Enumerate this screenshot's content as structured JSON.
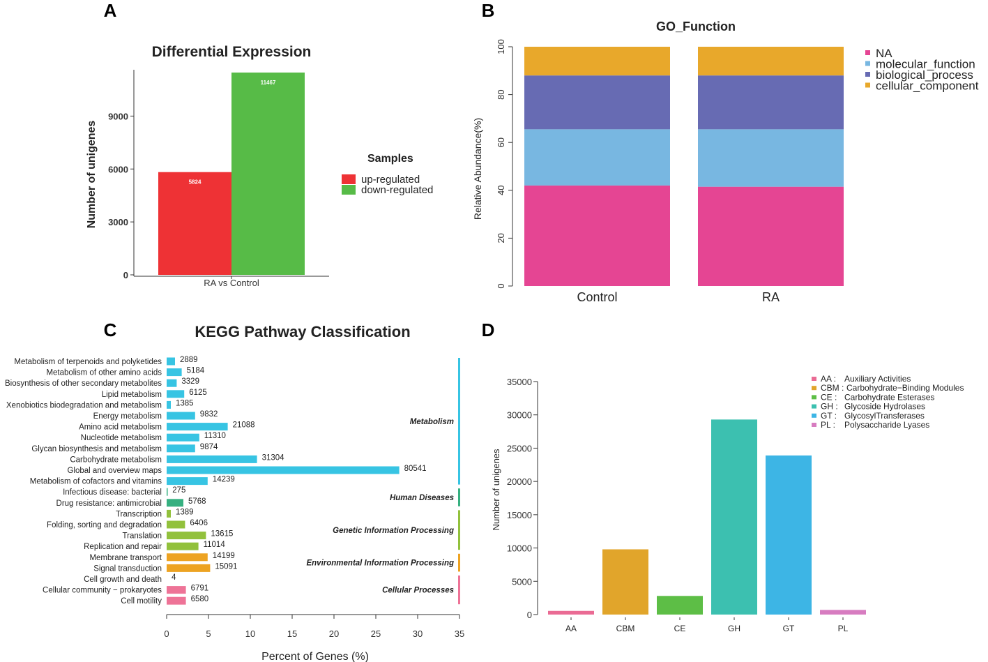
{
  "panels": {
    "a": {
      "letter": "A"
    },
    "b": {
      "letter": "B"
    },
    "c": {
      "letter": "C"
    },
    "d": {
      "letter": "D"
    }
  },
  "chart_data": [
    {
      "id": "A",
      "type": "bar",
      "title": "Differential Expression",
      "xlabel": "",
      "ylabel": "Number of unigenes",
      "categories": [
        "RA  vs Control"
      ],
      "series": [
        {
          "name": "up-regulated",
          "color": "#ee3235",
          "values": [
            5824
          ],
          "labels": [
            "5824"
          ]
        },
        {
          "name": "down-regulated",
          "color": "#57bb47",
          "values": [
            11467
          ],
          "labels": [
            "11467"
          ]
        }
      ],
      "ylim": [
        0,
        11467
      ],
      "yticks": [
        0,
        3000,
        6000,
        9000
      ],
      "legend_title": "Samples",
      "legend": "right"
    },
    {
      "id": "B",
      "type": "bar",
      "stacked": true,
      "title": "GO_Function",
      "xlabel": "",
      "ylabel": "Relative Abundance(%)",
      "categories": [
        "Control",
        "RA"
      ],
      "series": [
        {
          "name": "NA",
          "color": "#e54593",
          "values": [
            42,
            41.5
          ]
        },
        {
          "name": "molecular_function",
          "color": "#78b7e1",
          "values": [
            23.5,
            24
          ]
        },
        {
          "name": "biological_process",
          "color": "#676bb3",
          "values": [
            22.5,
            22.5
          ]
        },
        {
          "name": "cellular_component",
          "color": "#e8a82b",
          "values": [
            12,
            12
          ]
        }
      ],
      "ylim": [
        0,
        100
      ],
      "yticks": [
        0,
        20,
        40,
        60,
        80,
        100
      ],
      "legend": "top-right"
    },
    {
      "id": "C",
      "type": "bar",
      "orientation": "horizontal",
      "title": "KEGG Pathway Classification",
      "xlabel": "Percent of Genes (%)",
      "xlim": [
        0,
        35
      ],
      "xticks": [
        0,
        5,
        10,
        15,
        20,
        25,
        30,
        35
      ],
      "categories": [
        "Metabolism of terpenoids and polyketides",
        "Metabolism of other amino acids",
        "Biosynthesis of other secondary metabolites",
        "Lipid metabolism",
        "Xenobiotics biodegradation and metabolism",
        "Energy metabolism",
        "Amino acid metabolism",
        "Nucleotide metabolism",
        "Glycan biosynthesis and metabolism",
        "Carbohydrate metabolism",
        "Global and overview maps",
        "Metabolism of cofactors and vitamins",
        "Infectious disease: bacterial",
        "Drug resistance: antimicrobial",
        "Transcription",
        "Folding, sorting and degradation",
        "Translation",
        "Replication and repair",
        "Membrane transport",
        "Signal transduction",
        "Cell growth and death",
        "Cellular community − prokaryotes",
        "Cell motility"
      ],
      "percent": [
        1.0,
        1.8,
        1.2,
        2.1,
        0.5,
        3.4,
        7.3,
        3.9,
        3.4,
        10.8,
        27.8,
        4.9,
        0.1,
        2.0,
        0.5,
        2.2,
        4.7,
        3.8,
        4.9,
        5.2,
        0.0,
        2.3,
        2.3
      ],
      "counts": [
        "2889",
        "5184",
        "3329",
        "6125",
        "1385",
        "9832",
        "21088",
        "11310",
        "9874",
        "31304",
        "80541",
        "14239",
        "275",
        "5768",
        "1389",
        "6406",
        "13615",
        "11014",
        "14199",
        "15091",
        "4",
        "6791",
        "6580"
      ],
      "group_index": [
        0,
        0,
        0,
        0,
        0,
        0,
        0,
        0,
        0,
        0,
        0,
        0,
        1,
        1,
        2,
        2,
        2,
        2,
        3,
        3,
        4,
        4,
        4
      ],
      "groups": [
        {
          "name": "Metabolism",
          "color": "#37c4e3"
        },
        {
          "name": "Human Diseases",
          "color": "#36b080"
        },
        {
          "name": "Genetic Information Processing",
          "color": "#92c13c"
        },
        {
          "name": "Environmental Information Processing",
          "color": "#eda322"
        },
        {
          "name": "Cellular Processes",
          "color": "#ee7397"
        }
      ]
    },
    {
      "id": "D",
      "type": "bar",
      "title": "",
      "xlabel": "",
      "ylabel": "Number of unigenes",
      "categories": [
        "AA",
        "CBM",
        "CE",
        "GH",
        "GT",
        "PL"
      ],
      "values": [
        550,
        9800,
        2800,
        29300,
        23900,
        700
      ],
      "colors": [
        "#ea6b94",
        "#e1a52b",
        "#5dbe46",
        "#3cc0b0",
        "#3db5e5",
        "#d77cc0"
      ],
      "ylim": [
        0,
        35000
      ],
      "yticks": [
        0,
        5000,
        10000,
        15000,
        20000,
        25000,
        30000,
        35000
      ],
      "legend": "top-right",
      "legend_items": [
        {
          "code": "AA :",
          "desc": "Auxiliary Activities"
        },
        {
          "code": "CBM :",
          "desc": "Carbohydrate−Binding Modules"
        },
        {
          "code": "CE :",
          "desc": "Carbohydrate Esterases"
        },
        {
          "code": "GH :",
          "desc": "Glycoside Hydrolases"
        },
        {
          "code": "GT :",
          "desc": "GlycosylTransferases"
        },
        {
          "code": "PL :",
          "desc": "Polysaccharide Lyases"
        }
      ]
    }
  ]
}
